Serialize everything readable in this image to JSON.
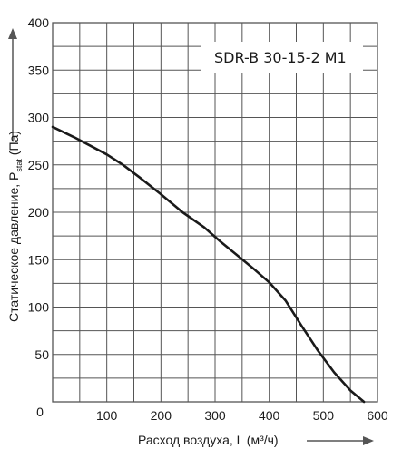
{
  "chart_data": {
    "type": "line",
    "title": "SDR-B 30-15-2 M1",
    "xlabel": "Расход воздуха, L (м³/ч)",
    "ylabel": "Статическое давление, P",
    "ylabel_sub": "stat",
    "ylabel_unit": " (Па)",
    "xlim": [
      0,
      600
    ],
    "ylim": [
      0,
      400
    ],
    "xticks": [
      0,
      100,
      200,
      300,
      400,
      500,
      600
    ],
    "yticks": [
      0,
      50,
      100,
      150,
      200,
      250,
      300,
      350,
      400
    ],
    "grid": true,
    "series": [
      {
        "x": [
          0,
          40,
          70,
          100,
          130,
          160,
          200,
          240,
          280,
          310,
          340,
          370,
          400,
          430,
          460,
          490,
          520,
          550,
          575
        ],
        "y": [
          290,
          279,
          270,
          261,
          250,
          237,
          219,
          200,
          184,
          169,
          155,
          141,
          126,
          107,
          80,
          54,
          31,
          12,
          0
        ]
      }
    ],
    "colors": {
      "line": "#1a1a1a",
      "grid": "#555555",
      "axis_arrow": "#555555"
    }
  }
}
